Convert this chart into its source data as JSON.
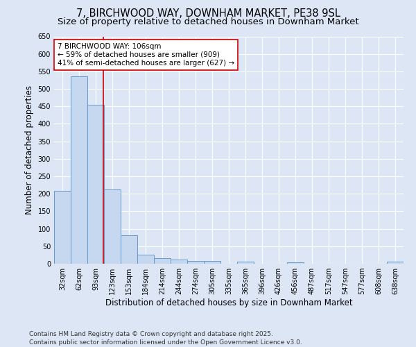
{
  "title": "7, BIRCHWOOD WAY, DOWNHAM MARKET, PE38 9SL",
  "subtitle": "Size of property relative to detached houses in Downham Market",
  "xlabel": "Distribution of detached houses by size in Downham Market",
  "ylabel": "Number of detached properties",
  "footer": "Contains HM Land Registry data © Crown copyright and database right 2025.\nContains public sector information licensed under the Open Government Licence v3.0.",
  "bin_labels": [
    "32sqm",
    "62sqm",
    "93sqm",
    "123sqm",
    "153sqm",
    "184sqm",
    "214sqm",
    "244sqm",
    "274sqm",
    "305sqm",
    "335sqm",
    "365sqm",
    "396sqm",
    "426sqm",
    "456sqm",
    "487sqm",
    "517sqm",
    "547sqm",
    "577sqm",
    "608sqm",
    "638sqm"
  ],
  "bar_values": [
    208,
    535,
    455,
    212,
    81,
    26,
    15,
    11,
    7,
    8,
    0,
    5,
    0,
    0,
    4,
    0,
    0,
    0,
    0,
    0,
    5
  ],
  "bar_color": "#c5d8f0",
  "bar_edge_color": "#6699cc",
  "property_line_x": 2.45,
  "annotation_text": "7 BIRCHWOOD WAY: 106sqm\n← 59% of detached houses are smaller (909)\n41% of semi-detached houses are larger (627) →",
  "annotation_box_color": "#ffffff",
  "annotation_box_edge": "#cc0000",
  "red_line_color": "#cc0000",
  "ylim": [
    0,
    650
  ],
  "yticks": [
    0,
    50,
    100,
    150,
    200,
    250,
    300,
    350,
    400,
    450,
    500,
    550,
    600,
    650
  ],
  "bg_color": "#dce6f5",
  "plot_bg_color": "#dce6f5",
  "grid_color": "#ffffff",
  "title_fontsize": 10.5,
  "subtitle_fontsize": 9.5,
  "axis_label_fontsize": 8.5,
  "tick_fontsize": 7,
  "annotation_fontsize": 7.5,
  "footer_fontsize": 6.5
}
